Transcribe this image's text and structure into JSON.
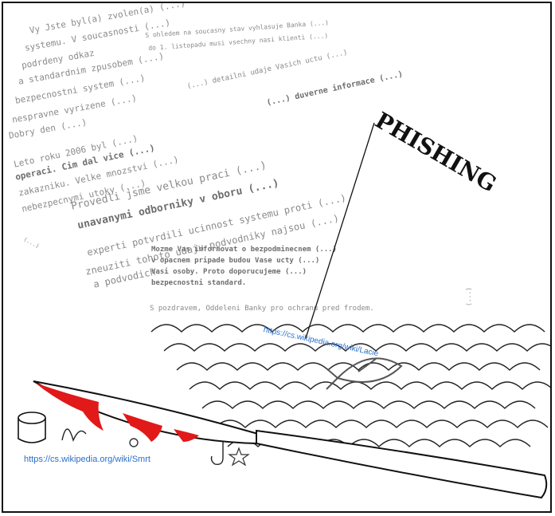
{
  "collage": {
    "left_text": [
      "Vy Jste byl(a) zvolen(a) (...)",
      "systemu. V soucasnosti (...)",
      "podrdeny odkaz",
      "a standardnim zpusobem (...)",
      "bezpecnostni system (...)",
      "nespravne vyrizene (...)",
      "Dobry den (...)",
      "Leto roku 2006 byl (...)",
      "operaci. Cim dal vice (...)",
      "zakazniku. Velke mnozstvi (...)",
      "nebezpecnymi utoky (...)",
      "Provedli jsme velkou praci (...)",
      "unavanymi odborniky v oboru (...)",
      "experti potvrdili ucinnost systemu proti (...)",
      "zneuziti tohoto udaju podvodniky najsou (...)",
      "a podvodich."
    ],
    "top_notice": [
      "S ohledem na soucasny stav vyhlasuje Banka (...)",
      "do 1. listopadu musi vsechny nasi klienti (...)",
      "(...) detailni udaje Vasich uctu (...)",
      "(...) duverne informace (...)"
    ],
    "right_vertical": "(...)",
    "small_diagonal": "(...)",
    "main_notice": [
      "Mozme Vas informovat o bezpodminecnem (...)",
      "v opacnem pripade budou Vase ucty (...)",
      "Vasi osoby. Proto doporucujeme (...)",
      "bezpecnostni standard."
    ],
    "signature": "S pozdravem, Oddeleni Banky pro ochranu pred frodem.",
    "arc_title": "PHISHING",
    "link_phishing": "https://cs.wikipedia.org/wiki/Lacie",
    "link_death": "https://cs.wikipedia.org/wiki/Smrt"
  },
  "colors": {
    "ink": "#111111",
    "text_gray": "#8a8a8a",
    "blood": "#e11919",
    "link": "#2a6fc9"
  }
}
